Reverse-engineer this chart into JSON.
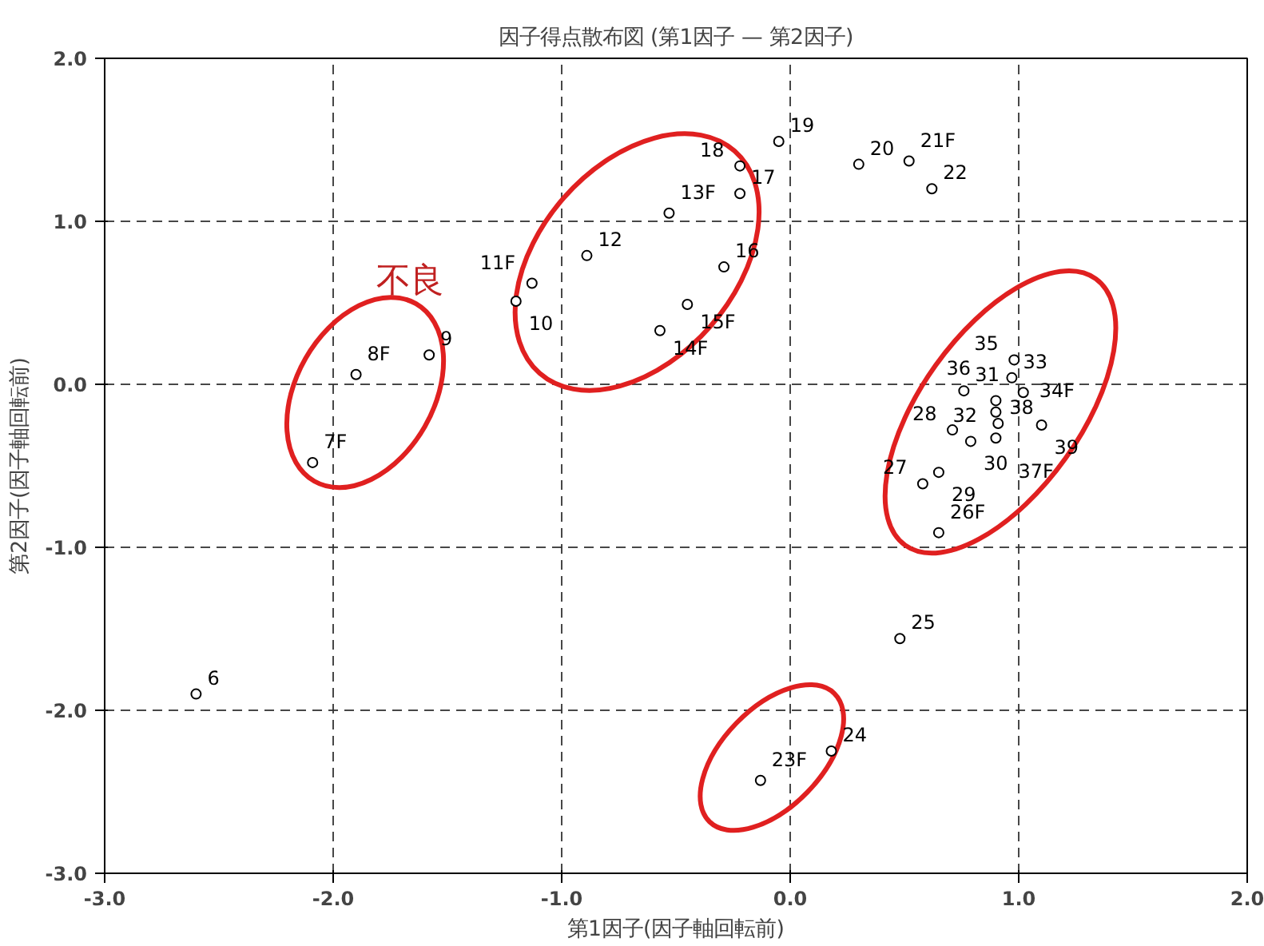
{
  "chart_data": {
    "type": "scatter",
    "title": "因子得点散布図 (第1因子 — 第2因子)",
    "xlabel": "第1因子(因子軸回転前)",
    "ylabel": "第2因子(因子軸回転前)",
    "xlim": [
      -3,
      2
    ],
    "ylim": [
      -3,
      2
    ],
    "xticks": [
      {
        "value": -3,
        "label": "-3.0"
      },
      {
        "value": -2,
        "label": "-2.0"
      },
      {
        "value": -1,
        "label": "-1.0"
      },
      {
        "value": 0,
        "label": "0.0"
      },
      {
        "value": 1,
        "label": "1.0"
      },
      {
        "value": 2,
        "label": "2.0"
      }
    ],
    "yticks": [
      {
        "value": -3,
        "label": "-3.0"
      },
      {
        "value": -2,
        "label": "-2.0"
      },
      {
        "value": -1,
        "label": "-1.0"
      },
      {
        "value": 0,
        "label": "0.0"
      },
      {
        "value": 1,
        "label": "1.0"
      },
      {
        "value": 2,
        "label": "2.0"
      }
    ],
    "grid": true,
    "marker": "circle",
    "annotations": [
      "不良",
      {
        "text": "6",
        "x": -2.6,
        "y": -1.9
      },
      {
        "text": "7F",
        "x": -2.09,
        "y": -0.48
      },
      {
        "text": "8F",
        "x": -1.9,
        "y": 0.06
      },
      {
        "text": "9",
        "x": -1.58,
        "y": 0.18
      },
      {
        "text": "10",
        "x": -1.2,
        "y": 0.51
      },
      {
        "text": "11F",
        "x": -1.13,
        "y": 0.62
      },
      {
        "text": "12",
        "x": -0.89,
        "y": 0.79
      },
      {
        "text": "13F",
        "x": -0.53,
        "y": 1.05
      },
      {
        "text": "14F",
        "x": -0.57,
        "y": 0.33
      },
      {
        "text": "15F",
        "x": -0.45,
        "y": 0.49
      },
      {
        "text": "16",
        "x": -0.29,
        "y": 0.72
      },
      {
        "text": "17",
        "x": -0.22,
        "y": 1.17
      },
      {
        "text": "18",
        "x": -0.22,
        "y": 1.34
      },
      {
        "text": "19",
        "x": -0.05,
        "y": 1.49
      },
      {
        "text": "20",
        "x": 0.3,
        "y": 1.35
      },
      {
        "text": "21F",
        "x": 0.52,
        "y": 1.37
      },
      {
        "text": "22",
        "x": 0.62,
        "y": 1.2
      },
      {
        "text": "23F",
        "x": -0.13,
        "y": -2.43
      },
      {
        "text": "24",
        "x": 0.18,
        "y": -2.25
      },
      {
        "text": "25",
        "x": 0.48,
        "y": -1.56
      },
      {
        "text": "26F",
        "x": 0.65,
        "y": -0.91
      },
      {
        "text": "27",
        "x": 0.58,
        "y": -0.61
      },
      {
        "text": "28",
        "x": 0.71,
        "y": -0.28
      },
      {
        "text": "29",
        "x": 0.65,
        "y": -0.54
      },
      {
        "text": "30",
        "x": 0.79,
        "y": -0.35
      },
      {
        "text": "31",
        "x": 0.76,
        "y": -0.04
      },
      {
        "text": "32",
        "x": 0.9,
        "y": -0.17
      },
      {
        "text": "33",
        "x": 0.97,
        "y": 0.04
      },
      {
        "text": "34F",
        "x": 1.02,
        "y": -0.05
      },
      {
        "text": "35",
        "x": 0.98,
        "y": 0.15
      },
      {
        "text": "36",
        "x": 0.9,
        "y": -0.1
      },
      {
        "text": "37F",
        "x": 0.9,
        "y": -0.33
      },
      {
        "text": "38",
        "x": 0.91,
        "y": -0.24
      },
      {
        "text": "39",
        "x": 1.1,
        "y": -0.25
      }
    ],
    "series": [
      {
        "color": "#000000",
        "x": [
          -2.6,
          -2.09,
          -1.9,
          -1.58,
          -1.2,
          -1.13,
          -0.89,
          -0.53,
          -0.57,
          -0.45,
          -0.29,
          -0.22,
          -0.22,
          -0.05,
          0.3,
          0.52,
          0.62,
          -0.13,
          0.18,
          0.48,
          0.65,
          0.58,
          0.71,
          0.65,
          0.79,
          0.76,
          0.9,
          0.97,
          1.02,
          0.98,
          0.9,
          0.9,
          0.91,
          1.1
        ],
        "values": [
          -1.9,
          -0.48,
          0.06,
          0.18,
          0.51,
          0.62,
          0.79,
          1.05,
          0.33,
          0.49,
          0.72,
          1.17,
          1.34,
          1.49,
          1.35,
          1.37,
          1.2,
          -2.43,
          -2.25,
          -1.56,
          -0.91,
          -0.61,
          -0.28,
          -0.54,
          -0.35,
          -0.04,
          -0.17,
          0.04,
          -0.05,
          0.15,
          -0.1,
          -0.33,
          -0.24,
          -0.25
        ]
      }
    ]
  }
}
